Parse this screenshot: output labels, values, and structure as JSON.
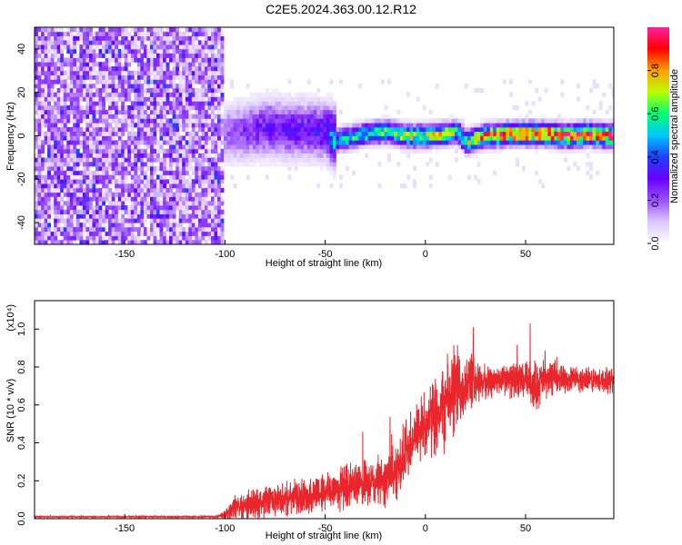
{
  "title": "C2E5.2024.363.00.12.R12",
  "colors": {
    "snr_line": "#e8262b",
    "spectrogram_background": "#ffffff",
    "colormap": [
      "#ffffff",
      "#dcc8ff",
      "#9a50ff",
      "#6a00ff",
      "#2040ff",
      "#00c8ff",
      "#00ff70",
      "#b8ff00",
      "#ffa000",
      "#ff0000",
      "#ff20a0"
    ]
  },
  "chart_data": [
    {
      "type": "heatmap",
      "title": "C2E5.2024.363.00.12.R12",
      "xlabel": "Height of straight line (km)",
      "ylabel": "Frequency (Hz)",
      "xlim": [
        -195,
        94
      ],
      "ylim": [
        -50,
        50
      ],
      "xticks": [
        -150,
        -100,
        -50,
        0,
        50
      ],
      "yticks": [
        -40,
        -20,
        0,
        20,
        40
      ],
      "xtick_labels": [
        "-150",
        "-100",
        "-50",
        "0",
        "50"
      ],
      "ytick_labels": [
        "-40",
        "-20",
        "0",
        "20",
        "40"
      ],
      "colorbar": {
        "label": "Normalized spectral amplitude",
        "range": [
          0.0,
          1.0
        ],
        "ticks": [
          0.0,
          0.2,
          0.4,
          0.6,
          0.8
        ],
        "tick_labels": [
          "0.0",
          "0.2",
          "0.4",
          "0.6",
          "0.8"
        ]
      },
      "regions": [
        {
          "x": [
            -195,
            -101
          ],
          "description_value": "broadband noise, amplitude ~0.05-0.2 across all frequencies"
        },
        {
          "x": [
            -101,
            -45
          ],
          "center_freq": 1,
          "spread_hz": 8,
          "peak_amplitude": 0.35
        },
        {
          "x": [
            -45,
            94
          ],
          "center_freq": -1,
          "spread_hz": 3,
          "peak_amplitude": 0.95
        }
      ],
      "ridge": {
        "x": [
          -100,
          -90,
          -80,
          -70,
          -60,
          -50,
          -45,
          -40,
          -30,
          -20,
          -10,
          0,
          10,
          15,
          20,
          25,
          30,
          40,
          50,
          60,
          70,
          80,
          90
        ],
        "freq": [
          0,
          1,
          3,
          2,
          2,
          1,
          -3,
          -2,
          0,
          1,
          -1,
          -1,
          0,
          1,
          -4,
          -2,
          -1,
          0,
          0,
          0,
          -1,
          0,
          -1
        ],
        "amplitude": [
          0.2,
          0.25,
          0.3,
          0.3,
          0.3,
          0.35,
          0.55,
          0.6,
          0.6,
          0.65,
          0.7,
          0.7,
          0.75,
          0.6,
          0.7,
          0.8,
          0.85,
          0.9,
          0.9,
          0.95,
          0.9,
          0.95,
          0.9
        ]
      }
    },
    {
      "type": "line",
      "xlabel": "Height of straight line (km)",
      "ylabel": "SNR (10 * v/v)",
      "y_multiplier": "(x10⁴)",
      "xlim": [
        -195,
        94
      ],
      "ylim": [
        0.0,
        1.15
      ],
      "xticks": [
        -150,
        -100,
        -50,
        0,
        50
      ],
      "yticks": [
        0.0,
        0.2,
        0.4,
        0.6,
        0.8,
        1.0
      ],
      "xtick_labels": [
        "-150",
        "-100",
        "-50",
        "0",
        "50"
      ],
      "ytick_labels": [
        "0.0",
        "0.2",
        "0.4",
        "0.6",
        "0.8",
        "1.0"
      ],
      "series": [
        {
          "x": [
            -195,
            -180,
            -160,
            -140,
            -120,
            -105,
            -100,
            -95,
            -90,
            -80,
            -70,
            -60,
            -50,
            -40,
            -30,
            -20,
            -15,
            -10,
            -5,
            0,
            5,
            10,
            15,
            20,
            25,
            30,
            40,
            50,
            55,
            60,
            70,
            80,
            94
          ],
          "y": [
            0.01,
            0.01,
            0.01,
            0.01,
            0.01,
            0.01,
            0.02,
            0.06,
            0.07,
            0.09,
            0.1,
            0.12,
            0.14,
            0.17,
            0.18,
            0.2,
            0.25,
            0.35,
            0.45,
            0.5,
            0.55,
            0.6,
            0.68,
            0.72,
            0.73,
            0.72,
            0.73,
            0.73,
            0.7,
            0.74,
            0.74,
            0.73,
            0.73
          ],
          "noise_amplitude": [
            0.004,
            0.004,
            0.004,
            0.004,
            0.004,
            0.004,
            0.03,
            0.08,
            0.09,
            0.1,
            0.1,
            0.11,
            0.13,
            0.14,
            0.14,
            0.16,
            0.18,
            0.2,
            0.2,
            0.22,
            0.24,
            0.28,
            0.3,
            0.2,
            0.15,
            0.1,
            0.1,
            0.12,
            0.16,
            0.12,
            0.08,
            0.08,
            0.08
          ]
        }
      ]
    }
  ]
}
